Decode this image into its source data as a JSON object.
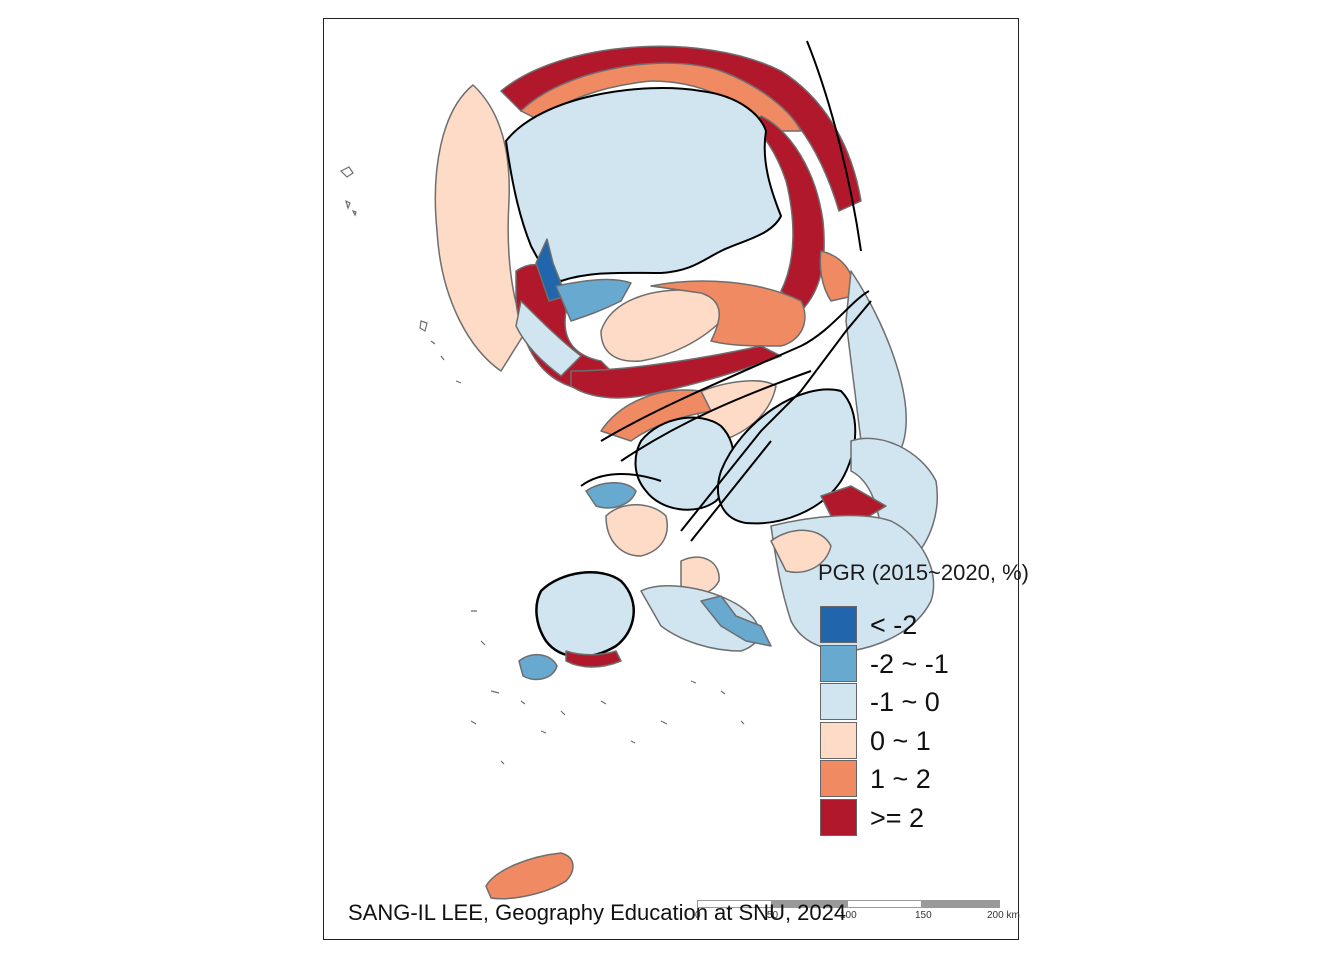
{
  "legend": {
    "title": "PGR (2015~2020, %)",
    "items": [
      {
        "label": "< -2",
        "color": "#2166ac"
      },
      {
        "label": "-2 ~ -1",
        "color": "#67a9cf"
      },
      {
        "label": "-1 ~ 0",
        "color": "#d1e5f0"
      },
      {
        "label": "0 ~ 1",
        "color": "#fddbc7"
      },
      {
        "label": "1 ~ 2",
        "color": "#ef8a62"
      },
      {
        "label": ">= 2",
        "color": "#b2182b"
      }
    ]
  },
  "scalebar": {
    "ticks": [
      "0",
      "50",
      "100",
      "150",
      "200 km"
    ]
  },
  "credit": "SANG-IL LEE, Geography Education at SNU, 2024",
  "colors": {
    "border_internal": "#6e6e6e",
    "border_province": "#000000"
  }
}
